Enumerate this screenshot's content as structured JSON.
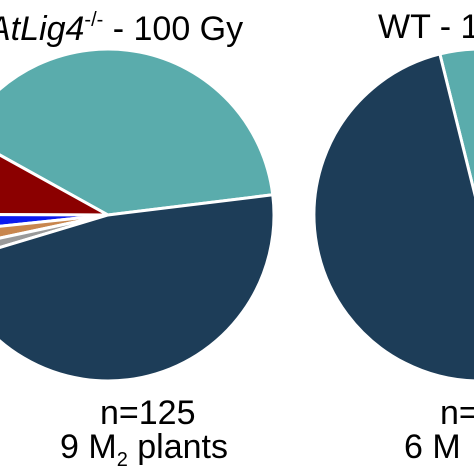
{
  "chart_data": [
    {
      "type": "pie",
      "title": {
        "genotype": "AtLig4",
        "superscript": "-/-",
        "rest": " - 100 Gy"
      },
      "slices": [
        {
          "value": 0.4,
          "color": "#5aacac"
        },
        {
          "value": 0.08,
          "color": "#8b0000"
        },
        {
          "value": 0.017,
          "color": "#0a1aef"
        },
        {
          "value": 0.017,
          "color": "#c8864e"
        },
        {
          "value": 0.013,
          "color": "#999999"
        },
        {
          "value": 0.473,
          "color": "#1d3d58"
        }
      ],
      "caption": {
        "n_line": "n=125",
        "plants_prefix": "9 M",
        "plants_subscript": "2",
        "plants_suffix": " plants"
      }
    },
    {
      "type": "pie",
      "title": {
        "text": "WT - 1"
      },
      "slices": [
        {
          "value": 0.06,
          "color": "#5aacac"
        },
        {
          "value": 0.94,
          "color": "#1d3d58"
        }
      ],
      "caption": {
        "n_line": "n=",
        "plants_prefix": "6 M"
      }
    }
  ]
}
